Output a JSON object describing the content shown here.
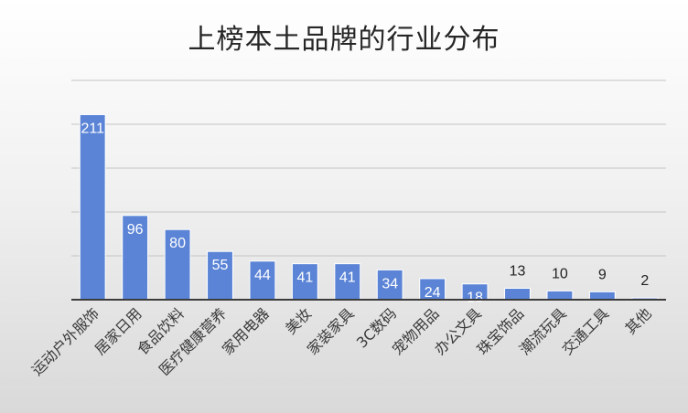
{
  "chart_data": {
    "type": "bar",
    "title": "上榜本土品牌的行业分布",
    "xlabel": "",
    "ylabel": "",
    "categories": [
      "运动户外服饰",
      "居家日用",
      "食品饮料",
      "医疗健康营养",
      "家用电器",
      "美妆",
      "家装家具",
      "3C数码",
      "宠物用品",
      "办公文具",
      "珠宝饰品",
      "潮流玩具",
      "交通工具",
      "其他"
    ],
    "values": [
      211,
      96,
      80,
      55,
      44,
      41,
      41,
      34,
      24,
      18,
      13,
      10,
      9,
      2
    ],
    "ylim": [
      0,
      250
    ],
    "grid": true,
    "legend": "none",
    "bar_color": "#5b84d6",
    "bar_edge_color": "#ffffff",
    "label_color": "#ffffff",
    "small_label_color": "#222222"
  }
}
